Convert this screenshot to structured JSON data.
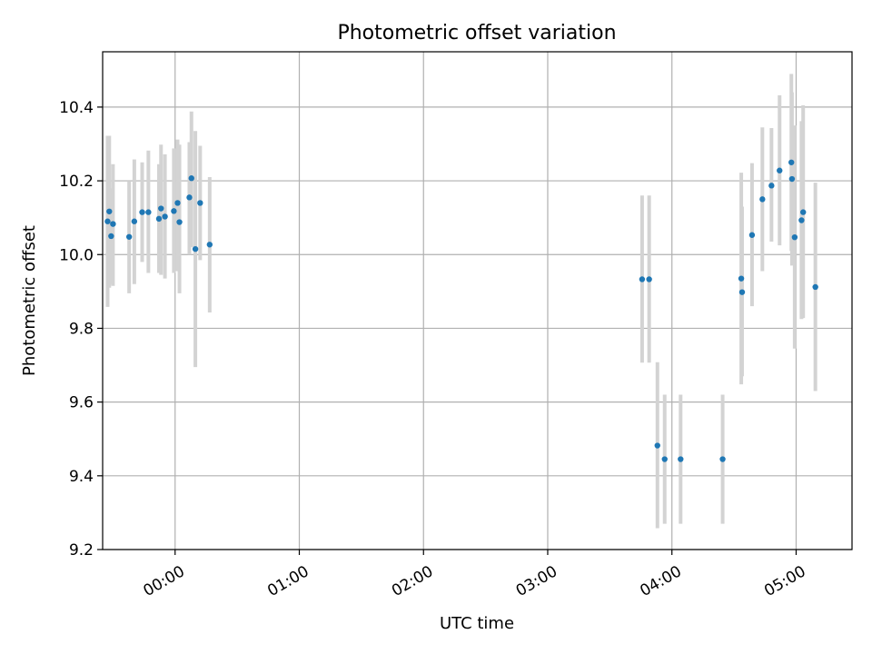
{
  "chart_data": {
    "type": "scatter",
    "title": "Photometric offset variation",
    "xlabel": "UTC time",
    "ylabel": "Photometric offset",
    "xlim": [
      "23:25",
      "05:27"
    ],
    "ylim": [
      9.2,
      10.55
    ],
    "grid": true,
    "x_ticks": [
      "00:00",
      "01:00",
      "02:00",
      "03:00",
      "04:00",
      "05:00"
    ],
    "y_ticks": [
      "9.2",
      "9.4",
      "9.6",
      "9.8",
      "10.0",
      "10.2",
      "10.4"
    ],
    "series": [
      {
        "error_bar_color": "#d3d3d3",
        "marker_color": "#1f77b4",
        "points": [
          {
            "time": "23:27:24",
            "y": 10.09,
            "ylow": 9.858,
            "yhigh": 10.322
          },
          {
            "time": "23:28:12",
            "y": 10.117,
            "ylow": 9.91,
            "yhigh": 10.322
          },
          {
            "time": "23:29:06",
            "y": 10.05,
            "ylow": 9.92,
            "yhigh": 10.18
          },
          {
            "time": "23:30:00",
            "y": 10.083,
            "ylow": 9.915,
            "yhigh": 10.245
          },
          {
            "time": "23:37:48",
            "y": 10.048,
            "ylow": 9.895,
            "yhigh": 10.2
          },
          {
            "time": "23:40:18",
            "y": 10.09,
            "ylow": 9.92,
            "yhigh": 10.258
          },
          {
            "time": "23:44:06",
            "y": 10.115,
            "ylow": 9.98,
            "yhigh": 10.25
          },
          {
            "time": "23:47:06",
            "y": 10.115,
            "ylow": 9.95,
            "yhigh": 10.282
          },
          {
            "time": "23:52:12",
            "y": 10.097,
            "ylow": 9.95,
            "yhigh": 10.245
          },
          {
            "time": "23:53:12",
            "y": 10.125,
            "ylow": 9.945,
            "yhigh": 10.298
          },
          {
            "time": "23:55:06",
            "y": 10.103,
            "ylow": 9.935,
            "yhigh": 10.272
          },
          {
            "time": "23:59:24",
            "y": 10.118,
            "ylow": 9.95,
            "yhigh": 10.288
          },
          {
            "time": "00:01:12",
            "y": 10.14,
            "ylow": 9.955,
            "yhigh": 10.312
          },
          {
            "time": "00:02:06",
            "y": 10.088,
            "ylow": 9.895,
            "yhigh": 10.298
          },
          {
            "time": "00:06:54",
            "y": 10.155,
            "ylow": 10.0,
            "yhigh": 10.305
          },
          {
            "time": "00:07:54",
            "y": 10.207,
            "ylow": 10.02,
            "yhigh": 10.388
          },
          {
            "time": "00:09:48",
            "y": 10.015,
            "ylow": 9.695,
            "yhigh": 10.335
          },
          {
            "time": "00:12:06",
            "y": 10.14,
            "ylow": 9.985,
            "yhigh": 10.295
          },
          {
            "time": "00:16:42",
            "y": 10.027,
            "ylow": 9.843,
            "yhigh": 10.21
          },
          {
            "time": "03:45:36",
            "y": 9.933,
            "ylow": 9.707,
            "yhigh": 10.16
          },
          {
            "time": "03:49:00",
            "y": 9.933,
            "ylow": 9.707,
            "yhigh": 10.16
          },
          {
            "time": "03:53:00",
            "y": 9.482,
            "ylow": 9.258,
            "yhigh": 9.708
          },
          {
            "time": "03:56:30",
            "y": 9.445,
            "ylow": 9.27,
            "yhigh": 9.62
          },
          {
            "time": "04:04:12",
            "y": 9.445,
            "ylow": 9.27,
            "yhigh": 9.62
          },
          {
            "time": "04:24:30",
            "y": 9.445,
            "ylow": 9.27,
            "yhigh": 9.62
          },
          {
            "time": "04:33:30",
            "y": 9.935,
            "ylow": 9.648,
            "yhigh": 10.222
          },
          {
            "time": "04:33:54",
            "y": 9.898,
            "ylow": 9.67,
            "yhigh": 10.13
          },
          {
            "time": "04:38:42",
            "y": 10.053,
            "ylow": 9.86,
            "yhigh": 10.248
          },
          {
            "time": "04:43:42",
            "y": 10.15,
            "ylow": 9.955,
            "yhigh": 10.345
          },
          {
            "time": "04:48:06",
            "y": 10.187,
            "ylow": 10.035,
            "yhigh": 10.343
          },
          {
            "time": "04:52:00",
            "y": 10.228,
            "ylow": 10.025,
            "yhigh": 10.432
          },
          {
            "time": "04:58:00",
            "y": 10.205,
            "ylow": 9.97,
            "yhigh": 10.44
          },
          {
            "time": "04:57:42",
            "y": 10.25,
            "ylow": 10.01,
            "yhigh": 10.49
          },
          {
            "time": "04:59:18",
            "y": 10.047,
            "ylow": 9.745,
            "yhigh": 10.35
          },
          {
            "time": "05:02:36",
            "y": 10.093,
            "ylow": 9.825,
            "yhigh": 10.362
          },
          {
            "time": "05:03:24",
            "y": 10.115,
            "ylow": 9.828,
            "yhigh": 10.405
          },
          {
            "time": "05:09:18",
            "y": 9.912,
            "ylow": 9.63,
            "yhigh": 10.195
          }
        ]
      }
    ]
  }
}
